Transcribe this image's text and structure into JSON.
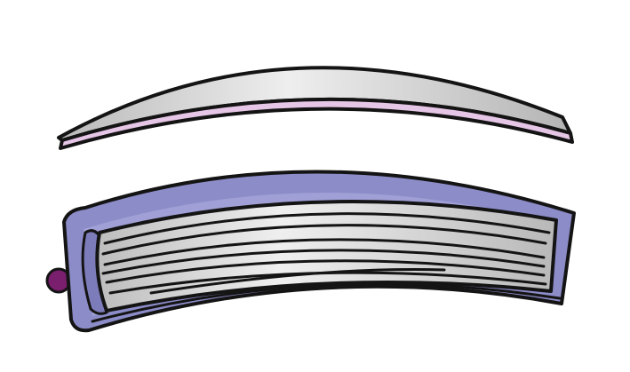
{
  "illustration": {
    "colors": {
      "background": "#ffffff",
      "outline": "#141414",
      "cover_purple": "#8c8cc8",
      "cover_purple_light": "#a6a6d8",
      "pages_gray": "#c8c8c8",
      "pages_gray_light": "#e6e6e6",
      "lid_pink": "#e6c6e6",
      "ribbon_magenta": "#7a1e6e"
    },
    "icons": {
      "top_piece": "curved-cover-strip-icon",
      "bottom_piece": "curved-book-block-icon",
      "ribbon": "ribbon-bookmark-icon"
    }
  }
}
